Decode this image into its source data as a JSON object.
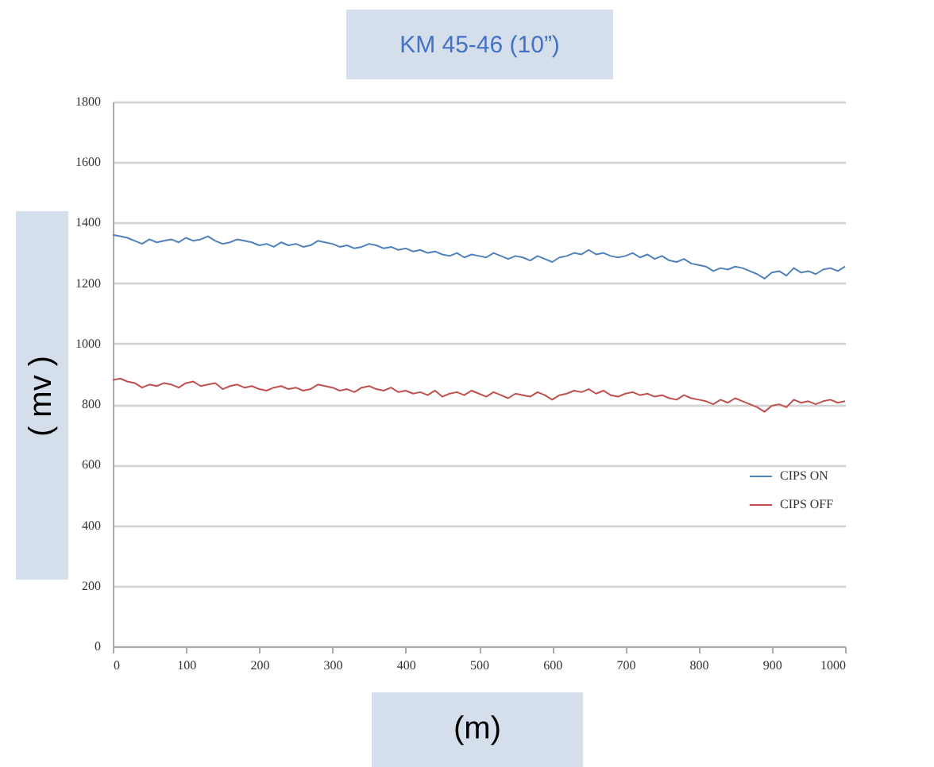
{
  "chart_data": {
    "type": "line",
    "title": "KM 45-46 (10”)",
    "xlabel": "(m)",
    "ylabel": "( mv )",
    "x": [
      0,
      10,
      20,
      30,
      40,
      50,
      60,
      70,
      80,
      90,
      100,
      110,
      120,
      130,
      140,
      150,
      160,
      170,
      180,
      190,
      200,
      210,
      220,
      230,
      240,
      250,
      260,
      270,
      280,
      290,
      300,
      310,
      320,
      330,
      340,
      350,
      360,
      370,
      380,
      390,
      400,
      410,
      420,
      430,
      440,
      450,
      460,
      470,
      480,
      490,
      500,
      510,
      520,
      530,
      540,
      550,
      560,
      570,
      580,
      590,
      600,
      610,
      620,
      630,
      640,
      650,
      660,
      670,
      680,
      690,
      700,
      710,
      720,
      730,
      740,
      750,
      760,
      770,
      780,
      790,
      800,
      810,
      820,
      830,
      840,
      850,
      860,
      870,
      880,
      890,
      900,
      910,
      920,
      930,
      940,
      950,
      960,
      970,
      980,
      990,
      1000
    ],
    "series": [
      {
        "name": "CIPS ON",
        "color": "#4f81bd",
        "values": [
          1360,
          1355,
          1350,
          1340,
          1330,
          1345,
          1335,
          1340,
          1345,
          1335,
          1350,
          1340,
          1345,
          1355,
          1340,
          1330,
          1335,
          1345,
          1340,
          1335,
          1325,
          1330,
          1320,
          1335,
          1325,
          1330,
          1320,
          1325,
          1340,
          1335,
          1330,
          1320,
          1325,
          1315,
          1320,
          1330,
          1325,
          1315,
          1320,
          1310,
          1315,
          1305,
          1310,
          1300,
          1305,
          1295,
          1290,
          1300,
          1285,
          1295,
          1290,
          1285,
          1300,
          1290,
          1280,
          1290,
          1285,
          1275,
          1290,
          1280,
          1270,
          1285,
          1290,
          1300,
          1295,
          1310,
          1295,
          1300,
          1290,
          1285,
          1290,
          1300,
          1285,
          1295,
          1280,
          1290,
          1275,
          1270,
          1280,
          1265,
          1260,
          1255,
          1240,
          1250,
          1245,
          1255,
          1250,
          1240,
          1230,
          1215,
          1235,
          1240,
          1225,
          1250,
          1235,
          1240,
          1230,
          1245,
          1250,
          1240,
          1255
        ]
      },
      {
        "name": "CIPS OFF",
        "color": "#c0504d",
        "values": [
          880,
          885,
          875,
          870,
          855,
          865,
          860,
          870,
          865,
          855,
          870,
          875,
          860,
          865,
          870,
          850,
          860,
          865,
          855,
          860,
          850,
          845,
          855,
          860,
          850,
          855,
          845,
          850,
          865,
          860,
          855,
          845,
          850,
          840,
          855,
          860,
          850,
          845,
          855,
          840,
          845,
          835,
          840,
          830,
          845,
          825,
          835,
          840,
          830,
          845,
          835,
          825,
          840,
          830,
          820,
          835,
          830,
          825,
          840,
          830,
          815,
          830,
          835,
          845,
          840,
          850,
          835,
          845,
          830,
          825,
          835,
          840,
          830,
          835,
          825,
          830,
          820,
          815,
          830,
          820,
          815,
          810,
          800,
          815,
          805,
          820,
          810,
          800,
          790,
          775,
          795,
          800,
          790,
          815,
          805,
          810,
          800,
          810,
          815,
          805,
          810
        ]
      }
    ],
    "xlim": [
      0,
      1000
    ],
    "xticks": [
      0,
      100,
      200,
      300,
      400,
      500,
      600,
      700,
      800,
      900,
      1000
    ],
    "ylim": [
      0,
      1800
    ],
    "yticks": [
      0,
      200,
      400,
      600,
      800,
      1000,
      1200,
      1400,
      1600,
      1800
    ],
    "grid": "y",
    "legend": "right",
    "marker": "none",
    "line_style": "solid"
  }
}
